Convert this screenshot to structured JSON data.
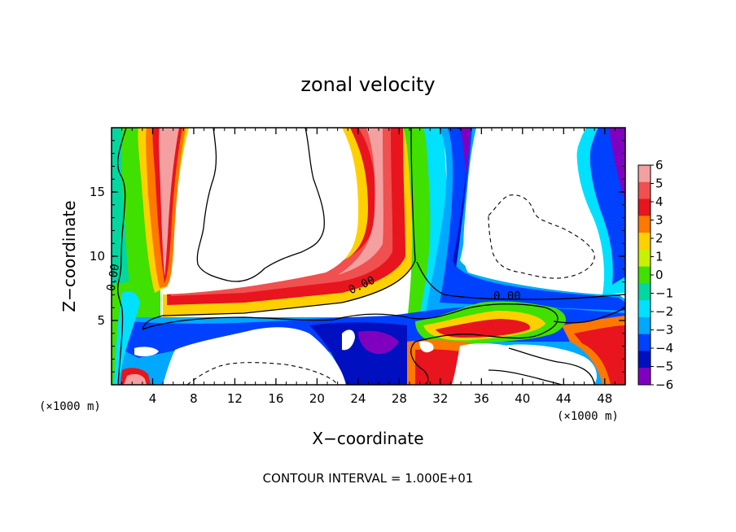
{
  "chart_data": {
    "type": "heatmap",
    "title": "zonal velocity",
    "xlabel": "X−coordinate",
    "ylabel": "Z−coordinate",
    "x_unit": "(×1000 m)",
    "x_unit_bottom": "(×1000 m)",
    "xlim": [
      0,
      50
    ],
    "ylim": [
      0,
      20
    ],
    "x_ticks": [
      4,
      8,
      12,
      16,
      20,
      24,
      28,
      32,
      36,
      40,
      44,
      48
    ],
    "x_tick_labels": [
      "4",
      "8",
      "12",
      "16",
      "20",
      "24",
      "28",
      "32",
      "36",
      "40",
      "44",
      "48"
    ],
    "y_ticks": [
      5,
      10,
      15
    ],
    "y_tick_labels": [
      "5",
      "10",
      "15"
    ],
    "colorbar": {
      "levels": [
        6,
        5,
        4,
        3,
        2,
        1,
        0,
        -1,
        -2,
        -3,
        -4,
        -5,
        -6
      ],
      "labels": [
        "6",
        "5",
        "4",
        "3",
        "2",
        "1",
        "0",
        "−1",
        "−2",
        "−3",
        "−4",
        "−5",
        "−6"
      ],
      "colors": [
        "#f4a0a0",
        "#f05050",
        "#e8141e",
        "#ff7800",
        "#ffd000",
        "#c8f000",
        "#40e000",
        "#00d8a0",
        "#00e0ff",
        "#00a8ff",
        "#0040ff",
        "#0010c0",
        "#8000c0"
      ]
    },
    "contour_labels": [
      {
        "text": "0.00",
        "x": 0.5,
        "y": 8.3,
        "angle": -80
      },
      {
        "text": "0.00",
        "x": 24.5,
        "y": 7.5,
        "angle": -25
      },
      {
        "text": "0.00",
        "x": 38.5,
        "y": 6.6,
        "angle": 0
      }
    ],
    "footer": "CONTOUR INTERVAL = 1.000E+01"
  }
}
